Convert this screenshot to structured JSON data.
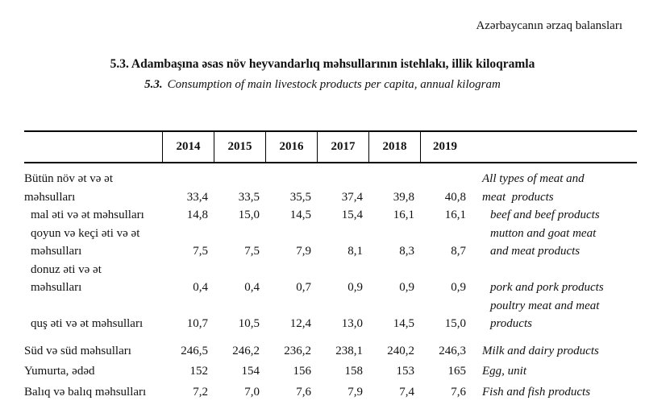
{
  "page": {
    "running_head": "Azərbaycanın ərzaq balansları",
    "title_az": "5.3. Adambaşına əsas növ heyvandarlıq məhsullarının istehlakı, illik kiloqramla",
    "subtitle_num": "5.3.",
    "subtitle_en": "Consumption of main livestock products per capita, annual kilogram"
  },
  "table": {
    "years": [
      "2014",
      "2015",
      "2016",
      "2017",
      "2018",
      "2019"
    ],
    "rows": [
      {
        "az": [
          "Bütün növ ət və ət",
          "məhsulları"
        ],
        "values": [
          "33,4",
          "33,5",
          "35,5",
          "37,4",
          "39,8",
          "40,8"
        ],
        "en": [
          "All types of meat and",
          "meat  products"
        ]
      },
      {
        "az": [
          "mal əti və ət məhsulları"
        ],
        "values": [
          "14,8",
          "15,0",
          "14,5",
          "15,4",
          "16,1",
          "16,1"
        ],
        "en": [
          "beef and beef products"
        ]
      },
      {
        "az": [
          "qoyun və keçi əti və ət",
          "məhsulları"
        ],
        "values": [
          "7,5",
          "7,5",
          "7,9",
          "8,1",
          "8,3",
          "8,7"
        ],
        "en": [
          "mutton and goat meat",
          "and meat products"
        ]
      },
      {
        "az": [
          "donuz əti və ət",
          "məhsulları"
        ],
        "values": [
          "0,4",
          "0,4",
          "0,7",
          "0,9",
          "0,9",
          "0,9"
        ],
        "en": [
          "pork and pork products",
          "poultry meat and meat"
        ]
      },
      {
        "az": [
          "quş əti və ət məhsulları"
        ],
        "values": [
          "10,7",
          "10,5",
          "12,4",
          "13,0",
          "14,5",
          "15,0"
        ],
        "en": [
          "products"
        ]
      },
      {
        "az": [
          "Süd və süd məhsulları"
        ],
        "values": [
          "246,5",
          "246,2",
          "236,2",
          "238,1",
          "240,2",
          "246,3"
        ],
        "en": [
          "Milk and dairy products"
        ]
      },
      {
        "az": [
          "Yumurta, ədəd"
        ],
        "values": [
          "152",
          "154",
          "156",
          "158",
          "153",
          "165"
        ],
        "en": [
          "Egg, unit"
        ]
      },
      {
        "az": [
          "Balıq və balıq məhsulları"
        ],
        "values": [
          "7,2",
          "7,0",
          "7,6",
          "7,9",
          "7,4",
          "7,6"
        ],
        "en": [
          "Fish and fish products"
        ]
      }
    ]
  }
}
